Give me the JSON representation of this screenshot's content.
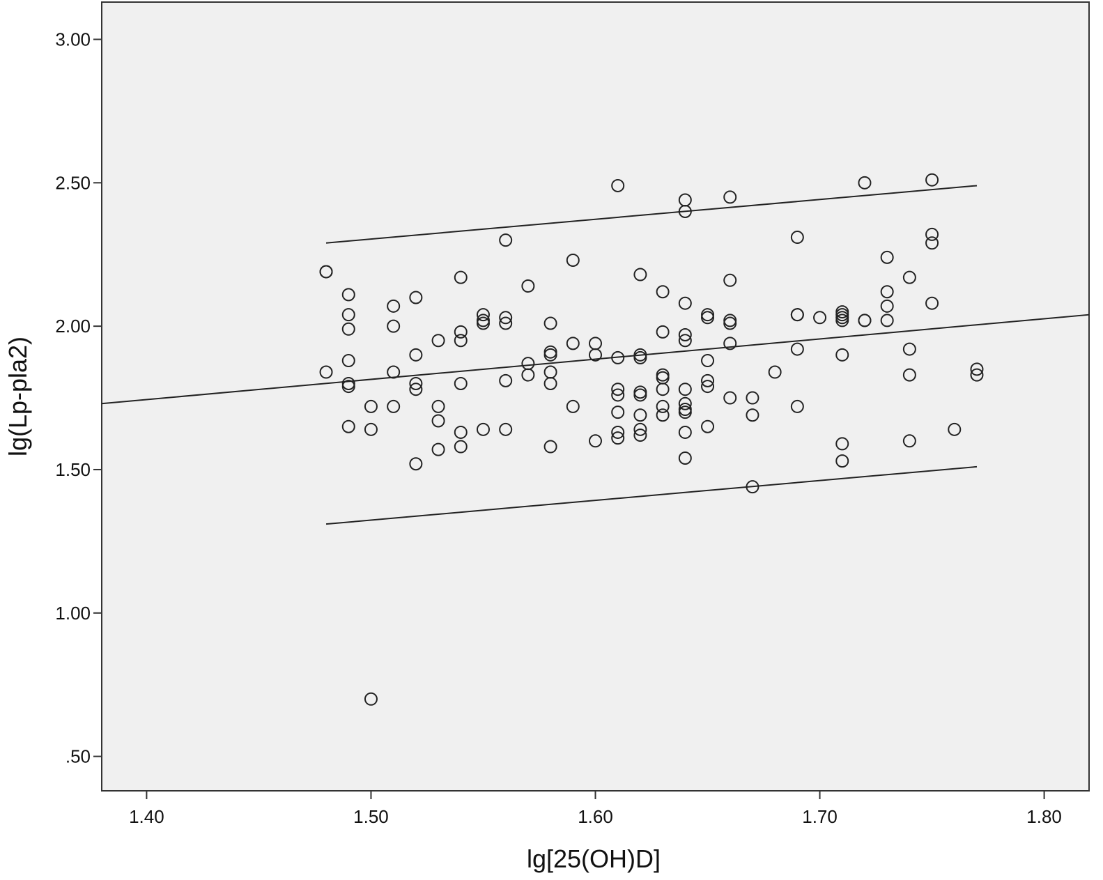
{
  "chart_data": {
    "type": "scatter",
    "title": "",
    "xlabel": "lg[25(OH)D]",
    "ylabel": "lg(Lp-pla2)",
    "xlim": [
      1.38,
      1.82
    ],
    "ylim": [
      0.38,
      3.13
    ],
    "x_ticks": [
      "1.40",
      "1.50",
      "1.60",
      "1.70",
      "1.80"
    ],
    "y_ticks": [
      ".50",
      "1.00",
      "1.50",
      "2.00",
      "2.50",
      "3.00"
    ],
    "grid": false,
    "legend": "none",
    "colors": {
      "plot_background": "#f0f0f0",
      "marker_stroke": "#222222",
      "line": "#222222"
    },
    "fit_line": {
      "x": [
        1.38,
        1.82
      ],
      "y": [
        1.73,
        2.04
      ]
    },
    "upper_band": {
      "x": [
        1.48,
        1.77
      ],
      "y": [
        2.29,
        2.49
      ]
    },
    "lower_band": {
      "x": [
        1.48,
        1.77
      ],
      "y": [
        1.31,
        1.51
      ]
    },
    "points": [
      [
        1.48,
        2.19
      ],
      [
        1.48,
        2.19
      ],
      [
        1.48,
        1.84
      ],
      [
        1.49,
        2.11
      ],
      [
        1.49,
        2.04
      ],
      [
        1.49,
        1.99
      ],
      [
        1.49,
        1.88
      ],
      [
        1.49,
        1.79
      ],
      [
        1.49,
        1.8
      ],
      [
        1.49,
        1.65
      ],
      [
        1.5,
        1.72
      ],
      [
        1.5,
        1.64
      ],
      [
        1.5,
        0.7
      ],
      [
        1.51,
        2.07
      ],
      [
        1.51,
        2.0
      ],
      [
        1.51,
        1.84
      ],
      [
        1.51,
        1.72
      ],
      [
        1.52,
        2.1
      ],
      [
        1.52,
        1.9
      ],
      [
        1.52,
        1.8
      ],
      [
        1.52,
        1.78
      ],
      [
        1.52,
        1.52
      ],
      [
        1.53,
        1.95
      ],
      [
        1.53,
        1.72
      ],
      [
        1.53,
        1.67
      ],
      [
        1.53,
        1.57
      ],
      [
        1.54,
        2.17
      ],
      [
        1.54,
        1.98
      ],
      [
        1.54,
        1.95
      ],
      [
        1.54,
        1.8
      ],
      [
        1.54,
        1.63
      ],
      [
        1.54,
        1.58
      ],
      [
        1.55,
        2.04
      ],
      [
        1.55,
        2.02
      ],
      [
        1.55,
        2.01
      ],
      [
        1.55,
        1.64
      ],
      [
        1.56,
        2.3
      ],
      [
        1.56,
        2.03
      ],
      [
        1.56,
        2.01
      ],
      [
        1.56,
        1.81
      ],
      [
        1.56,
        1.64
      ],
      [
        1.57,
        2.14
      ],
      [
        1.57,
        1.87
      ],
      [
        1.57,
        1.83
      ],
      [
        1.58,
        2.01
      ],
      [
        1.58,
        1.91
      ],
      [
        1.58,
        1.9
      ],
      [
        1.58,
        1.84
      ],
      [
        1.58,
        1.8
      ],
      [
        1.58,
        1.58
      ],
      [
        1.59,
        2.23
      ],
      [
        1.59,
        1.94
      ],
      [
        1.59,
        1.72
      ],
      [
        1.6,
        1.94
      ],
      [
        1.6,
        1.9
      ],
      [
        1.6,
        1.6
      ],
      [
        1.61,
        2.49
      ],
      [
        1.61,
        1.89
      ],
      [
        1.61,
        1.78
      ],
      [
        1.61,
        1.76
      ],
      [
        1.61,
        1.7
      ],
      [
        1.61,
        1.63
      ],
      [
        1.61,
        1.61
      ],
      [
        1.62,
        2.18
      ],
      [
        1.62,
        1.9
      ],
      [
        1.62,
        1.89
      ],
      [
        1.62,
        1.77
      ],
      [
        1.62,
        1.76
      ],
      [
        1.62,
        1.69
      ],
      [
        1.62,
        1.64
      ],
      [
        1.62,
        1.62
      ],
      [
        1.63,
        2.12
      ],
      [
        1.63,
        1.98
      ],
      [
        1.63,
        1.83
      ],
      [
        1.63,
        1.82
      ],
      [
        1.63,
        1.78
      ],
      [
        1.63,
        1.72
      ],
      [
        1.63,
        1.69
      ],
      [
        1.64,
        2.44
      ],
      [
        1.64,
        2.4
      ],
      [
        1.64,
        2.08
      ],
      [
        1.64,
        1.97
      ],
      [
        1.64,
        1.95
      ],
      [
        1.64,
        1.78
      ],
      [
        1.64,
        1.73
      ],
      [
        1.64,
        1.71
      ],
      [
        1.64,
        1.7
      ],
      [
        1.64,
        1.63
      ],
      [
        1.64,
        1.54
      ],
      [
        1.65,
        2.04
      ],
      [
        1.65,
        2.03
      ],
      [
        1.65,
        1.88
      ],
      [
        1.65,
        1.81
      ],
      [
        1.65,
        1.79
      ],
      [
        1.65,
        1.65
      ],
      [
        1.66,
        2.45
      ],
      [
        1.66,
        2.16
      ],
      [
        1.66,
        2.02
      ],
      [
        1.66,
        2.01
      ],
      [
        1.66,
        1.94
      ],
      [
        1.66,
        1.75
      ],
      [
        1.67,
        1.75
      ],
      [
        1.67,
        1.69
      ],
      [
        1.67,
        1.44
      ],
      [
        1.68,
        1.84
      ],
      [
        1.69,
        2.31
      ],
      [
        1.69,
        2.04
      ],
      [
        1.69,
        2.04
      ],
      [
        1.69,
        1.92
      ],
      [
        1.69,
        1.72
      ],
      [
        1.7,
        2.03
      ],
      [
        1.71,
        2.05
      ],
      [
        1.71,
        2.04
      ],
      [
        1.71,
        2.03
      ],
      [
        1.71,
        2.02
      ],
      [
        1.71,
        1.9
      ],
      [
        1.71,
        1.59
      ],
      [
        1.71,
        1.53
      ],
      [
        1.72,
        2.5
      ],
      [
        1.72,
        2.02
      ],
      [
        1.72,
        2.02
      ],
      [
        1.73,
        2.24
      ],
      [
        1.73,
        2.12
      ],
      [
        1.73,
        2.07
      ],
      [
        1.73,
        2.02
      ],
      [
        1.74,
        2.17
      ],
      [
        1.74,
        1.92
      ],
      [
        1.74,
        1.83
      ],
      [
        1.74,
        1.6
      ],
      [
        1.75,
        2.51
      ],
      [
        1.75,
        2.32
      ],
      [
        1.75,
        2.29
      ],
      [
        1.75,
        2.08
      ],
      [
        1.76,
        1.64
      ],
      [
        1.77,
        1.85
      ],
      [
        1.77,
        1.83
      ]
    ]
  }
}
